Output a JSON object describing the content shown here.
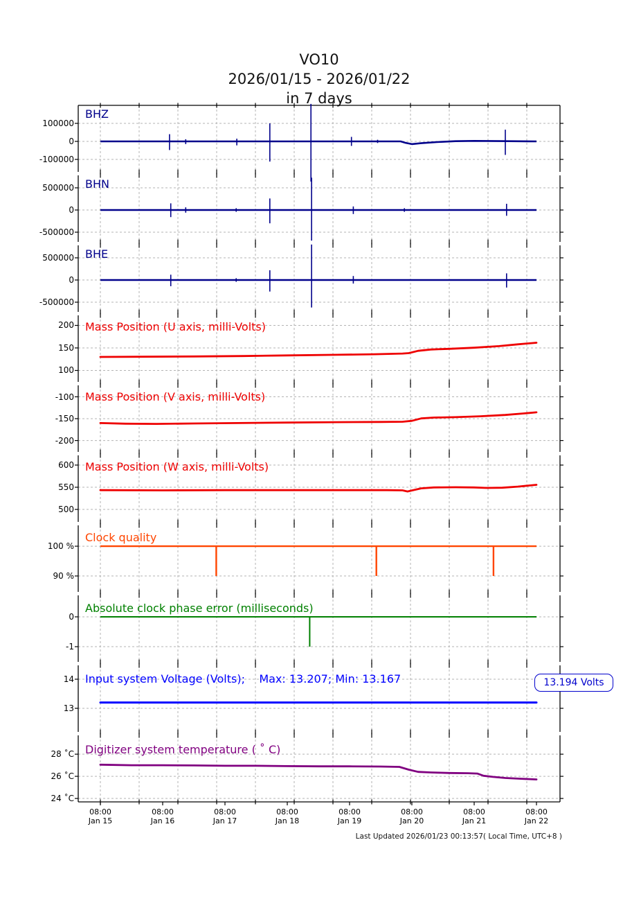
{
  "title": {
    "station": "VO10",
    "range": "2026/01/15 - 2026/01/22",
    "span": "in 7 days"
  },
  "footer": {
    "last_updated": "Last Updated 2026/01/23 00:13:57( Local Time, UTC+8 )"
  },
  "voltage_annotation": {
    "text": "13.194 Volts",
    "color": "#0000cc"
  },
  "x_axis": {
    "tick_time": "08:00",
    "days": [
      "Jan 15",
      "Jan 16",
      "Jan 17",
      "Jan 18",
      "Jan 19",
      "Jan 20",
      "Jan 21",
      "Jan 22"
    ],
    "range_days": 7
  },
  "colors": {
    "seismic": "#00008b",
    "mass": "#ee0000",
    "clock": "#ff4500",
    "phase": "#008000",
    "voltage": "#0000ff",
    "temperature": "#800080",
    "grid": "#b3b3b3"
  },
  "chart_data": [
    {
      "id": "bhz",
      "type": "line",
      "label": "BHZ",
      "color": "#00008b",
      "ylim": [
        -169231,
        200000
      ],
      "yticks": [
        {
          "v": 100000,
          "t": "100000"
        },
        {
          "v": 0,
          "t": "0"
        },
        {
          "v": -100000,
          "t": "-100000"
        }
      ],
      "baseline": [
        [
          0,
          0
        ],
        [
          4.82,
          0
        ],
        [
          4.9,
          -8000
        ],
        [
          5.0,
          -15000
        ],
        [
          5.15,
          -10000
        ],
        [
          5.4,
          -4000
        ],
        [
          5.7,
          1000
        ],
        [
          6.0,
          2500
        ],
        [
          6.4,
          1500
        ],
        [
          7,
          0
        ]
      ],
      "spikes": [
        {
          "x": 1.11,
          "up": 40000,
          "dn": 48000
        },
        {
          "x": 1.37,
          "up": 12000,
          "dn": 15000
        },
        {
          "x": 2.19,
          "up": 15000,
          "dn": 22000
        },
        {
          "x": 2.72,
          "up": 100000,
          "dn": 112000
        },
        {
          "x": 3.38,
          "up": 208000,
          "dn": 223000
        },
        {
          "x": 4.03,
          "up": 25000,
          "dn": 25000
        },
        {
          "x": 4.45,
          "up": 9000,
          "dn": 9000
        },
        {
          "x": 6.5,
          "up": 65000,
          "dn": 75000
        }
      ],
      "lw": 2.6,
      "spike_lw": 1.6
    },
    {
      "id": "bhn",
      "type": "line",
      "label": "BHN",
      "color": "#00008b",
      "ylim": [
        -718750,
        781250
      ],
      "yticks": [
        {
          "v": 500000,
          "t": "500000"
        },
        {
          "v": 0,
          "t": "0"
        },
        {
          "v": -500000,
          "t": "-500000"
        }
      ],
      "baseline": [
        [
          0,
          0
        ],
        [
          7,
          0
        ]
      ],
      "spikes": [
        {
          "x": 1.13,
          "up": 150000,
          "dn": 160000
        },
        {
          "x": 1.37,
          "up": 60000,
          "dn": 60000
        },
        {
          "x": 2.18,
          "up": 40000,
          "dn": 40000
        },
        {
          "x": 2.72,
          "up": 260000,
          "dn": 300000
        },
        {
          "x": 3.39,
          "up": 730000,
          "dn": 690000
        },
        {
          "x": 4.06,
          "up": 80000,
          "dn": 90000
        },
        {
          "x": 4.88,
          "up": 40000,
          "dn": 40000
        },
        {
          "x": 6.52,
          "up": 140000,
          "dn": 130000
        }
      ],
      "lw": 2.6,
      "spike_lw": 1.6
    },
    {
      "id": "bhe",
      "type": "line",
      "label": "BHE",
      "color": "#00008b",
      "ylim": [
        -718750,
        781250
      ],
      "yticks": [
        {
          "v": 500000,
          "t": "500000"
        },
        {
          "v": 0,
          "t": "0"
        },
        {
          "v": -500000,
          "t": "-500000"
        }
      ],
      "baseline": [
        [
          0,
          0
        ],
        [
          7,
          0
        ]
      ],
      "spikes": [
        {
          "x": 1.13,
          "up": 120000,
          "dn": 140000
        },
        {
          "x": 2.18,
          "up": 40000,
          "dn": 40000
        },
        {
          "x": 2.72,
          "up": 220000,
          "dn": 260000
        },
        {
          "x": 3.39,
          "up": 800000,
          "dn": 620000
        },
        {
          "x": 4.06,
          "up": 90000,
          "dn": 80000
        },
        {
          "x": 6.52,
          "up": 150000,
          "dn": 170000
        }
      ],
      "lw": 2.6,
      "spike_lw": 1.6
    },
    {
      "id": "mass-u",
      "type": "line",
      "label": "Mass Position (U axis, milli-Volts)",
      "color": "#ee0000",
      "ylim": [
        74.6,
        222.3
      ],
      "yticks": [
        {
          "v": 200,
          "t": "200"
        },
        {
          "v": 150,
          "t": "150"
        },
        {
          "v": 100,
          "t": "100"
        }
      ],
      "points": [
        [
          0,
          130
        ],
        [
          0.7,
          130.4
        ],
        [
          1.5,
          131
        ],
        [
          2.3,
          132
        ],
        [
          3,
          133.3
        ],
        [
          3.8,
          134.8
        ],
        [
          4.4,
          136
        ],
        [
          4.85,
          137.5
        ],
        [
          4.95,
          138.5
        ],
        [
          5.1,
          143.5
        ],
        [
          5.3,
          146.5
        ],
        [
          5.6,
          148
        ],
        [
          6,
          150.5
        ],
        [
          6.4,
          154
        ],
        [
          6.7,
          158
        ],
        [
          7,
          161.5
        ]
      ],
      "lw": 2.8
    },
    {
      "id": "mass-v",
      "type": "line",
      "label": "Mass Position (V axis, milli-Volts)",
      "color": "#ee0000",
      "ylim": [
        -226,
        -73.8
      ],
      "yticks": [
        {
          "v": -100,
          "t": "-100"
        },
        {
          "v": -150,
          "t": "-150"
        },
        {
          "v": -200,
          "t": "-200"
        }
      ],
      "points": [
        [
          0,
          -160
        ],
        [
          0.4,
          -161.5
        ],
        [
          0.9,
          -162
        ],
        [
          1.5,
          -161
        ],
        [
          2.2,
          -160
        ],
        [
          3,
          -159
        ],
        [
          3.8,
          -158
        ],
        [
          4.5,
          -157.5
        ],
        [
          4.85,
          -157
        ],
        [
          5.0,
          -155
        ],
        [
          5.15,
          -149.5
        ],
        [
          5.35,
          -147.5
        ],
        [
          5.7,
          -146.5
        ],
        [
          6.1,
          -144.5
        ],
        [
          6.5,
          -141.5
        ],
        [
          6.8,
          -138
        ],
        [
          7,
          -135.5
        ]
      ],
      "lw": 2.8
    },
    {
      "id": "mass-w",
      "type": "line",
      "label": "Mass Position (W axis, milli-Volts)",
      "color": "#ee0000",
      "ylim": [
        471.9,
        621.9
      ],
      "yticks": [
        {
          "v": 600,
          "t": "600"
        },
        {
          "v": 550,
          "t": "550"
        },
        {
          "v": 500,
          "t": "500"
        }
      ],
      "points": [
        [
          0,
          543.5
        ],
        [
          1,
          543
        ],
        [
          2,
          543.5
        ],
        [
          3,
          543.5
        ],
        [
          4,
          543.5
        ],
        [
          4.6,
          543.5
        ],
        [
          4.85,
          543
        ],
        [
          4.93,
          540.5
        ],
        [
          5.02,
          543.5
        ],
        [
          5.15,
          547.5
        ],
        [
          5.35,
          549.5
        ],
        [
          5.7,
          550
        ],
        [
          6.0,
          549.5
        ],
        [
          6.2,
          548.5
        ],
        [
          6.45,
          549
        ],
        [
          6.7,
          551.5
        ],
        [
          6.85,
          553.5
        ],
        [
          7,
          555.5
        ]
      ],
      "lw": 2.8
    },
    {
      "id": "clock-quality",
      "type": "line",
      "label": "Clock quality",
      "color": "#ff4500",
      "ylim": [
        84.65,
        107.0
      ],
      "yticks": [
        {
          "v": 100,
          "t": "100 %"
        },
        {
          "v": 90,
          "t": "90 %"
        }
      ],
      "baseline": [
        [
          0,
          100
        ],
        [
          7,
          100
        ]
      ],
      "drops": [
        {
          "x": 1.86,
          "v": 90
        },
        {
          "x": 4.43,
          "v": 90
        },
        {
          "x": 6.31,
          "v": 90
        }
      ],
      "lw": 2.4
    },
    {
      "id": "clock-phase-error",
      "type": "line",
      "label": "Absolute clock phase error (milliseconds)",
      "color": "#008000",
      "ylim": [
        -1.51,
        0.72
      ],
      "yticks": [
        {
          "v": 0,
          "t": "0"
        },
        {
          "v": -1,
          "t": "-1"
        }
      ],
      "baseline": [
        [
          0,
          0
        ],
        [
          7,
          0
        ]
      ],
      "drops": [
        {
          "x": 3.36,
          "v": -1
        }
      ],
      "lw": 2
    },
    {
      "id": "input-voltage",
      "type": "line",
      "label": "Input system Voltage (Volts);    Max: 13.207; Min: 13.167",
      "color": "#0000ff",
      "ylim": [
        12.19,
        14.476
      ],
      "yticks": [
        {
          "v": 14,
          "t": "14"
        },
        {
          "v": 13,
          "t": "13"
        }
      ],
      "points": [
        [
          0,
          13.2
        ],
        [
          7,
          13.2
        ]
      ],
      "stats": {
        "max": 13.207,
        "min": 13.167,
        "current": 13.194
      },
      "lw": 3
    },
    {
      "id": "digitizer-temperature",
      "type": "line",
      "label": "Digitizer system temperature ( ˚ C)",
      "color": "#800080",
      "ylim": [
        23.69,
        29.7
      ],
      "yticks": [
        {
          "v": 28,
          "t": "28 ˚C"
        },
        {
          "v": 26,
          "t": "26 ˚C"
        },
        {
          "v": 24,
          "t": "24 ˚C"
        }
      ],
      "points": [
        [
          0,
          27.05
        ],
        [
          0.5,
          27.0
        ],
        [
          1,
          27.0
        ],
        [
          1.5,
          26.98
        ],
        [
          2,
          26.95
        ],
        [
          2.5,
          26.95
        ],
        [
          3,
          26.92
        ],
        [
          3.5,
          26.9
        ],
        [
          4,
          26.9
        ],
        [
          4.5,
          26.88
        ],
        [
          4.8,
          26.85
        ],
        [
          4.95,
          26.6
        ],
        [
          5.1,
          26.4
        ],
        [
          5.3,
          26.35
        ],
        [
          5.6,
          26.3
        ],
        [
          5.9,
          26.28
        ],
        [
          6.05,
          26.25
        ],
        [
          6.15,
          26.05
        ],
        [
          6.3,
          25.95
        ],
        [
          6.5,
          25.85
        ],
        [
          6.75,
          25.78
        ],
        [
          7,
          25.72
        ]
      ],
      "lw": 2.8
    }
  ]
}
